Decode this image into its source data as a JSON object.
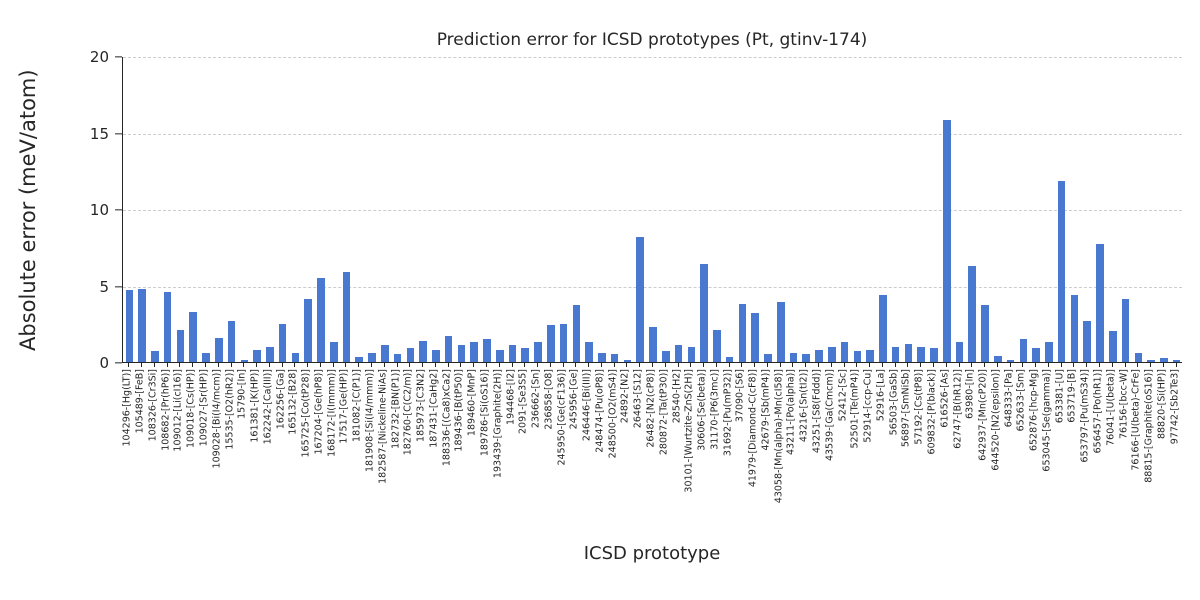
{
  "chart_data": {
    "type": "bar",
    "title": "Prediction error for ICSD prototypes (Pt, gtinv-174)",
    "xlabel": "ICSD prototype",
    "ylabel": "Absolute error (meV/atom)",
    "ylim": [
      0,
      20
    ],
    "yticks": [
      0,
      5,
      10,
      15,
      20
    ],
    "grid": "horizontal-dashed",
    "legend": "none",
    "bar_color": "#4878d0",
    "categories": [
      "104296-[Hg(LT)]",
      "105489-[FeB]",
      "108326-[Cr3Si]",
      "108682-[Pr(hP6)]",
      "109012-[Li(cI16)]",
      "109018-[Cs(HP)]",
      "109027-[Sr(HP)]",
      "109028-[Bi(I4/mcm)]",
      "15535-[O2(hR2)]",
      "15790-[In]",
      "161381-[K(HP)]",
      "162242-[Ca(III)]",
      "162256-[Ga]",
      "165132-[B28]",
      "165725-[Co(tP28)]",
      "167204-[Ge(hP8)]",
      "168172-[I(Immm)]",
      "17517-[Ge(HP)]",
      "181082-[C(P1)]",
      "181908-[Si(I4/mmm)]",
      "182587-[Nickeline-NiAs]",
      "182732-[BN(P1)]",
      "182760-[C(C2/m)]",
      "185973-[C3N2]",
      "187431-[CaHg2]",
      "188336-[(Ca8)xCa2]",
      "189436-[B(tP50)]",
      "189460-[MnP]",
      "189786-[Si(oS16)]",
      "193439-[Graphite(2H)]",
      "194468-[I2]",
      "2091-[Se3S5]",
      "236662-[Sn]",
      "236858-[O8]",
      "245950-[Ge(cF136)]",
      "245956-[Ge]",
      "246446-[Bi(III)]",
      "248474-[Pu(oP8)]",
      "248500-[O2(mS4)]",
      "24892-[N2]",
      "26463-[S12]",
      "26482-[N2(cP8)]",
      "280872-[Ta(tP30)]",
      "28540-[H2]",
      "30101-[Wurtzite-ZnS(2H)]",
      "30606-[Se(beta)]",
      "31170-[P6(3mc)]",
      "31692-[Pu(mP32)]",
      "37090-[S6]",
      "41979-[Diamond-C(cF8)]",
      "42679-[Sb(mP4)]",
      "43058-[Mn(alpha)-Mn(cI58)]",
      "43211-[Po(alpha)]",
      "43216-[Sn(tI2)]",
      "43251-[S8(Fddd)]",
      "43539-[Ga(Cmcm)]",
      "52412-[Sc]",
      "52501-[Te(mP4)]",
      "52914-[ccp-Cu]",
      "52916-[La]",
      "56503-[GaSb]",
      "56897-[SmNiSb]",
      "57192-[Cs(tP8)]",
      "609832-[P(black)]",
      "616526-[As]",
      "62747-[B(hR12)]",
      "63980-[In]",
      "642937-[Mn(cP20)]",
      "644520-[N2(epsilon)]",
      "648333-[Pa]",
      "652633-[Sm]",
      "652876-[hcp-Mg]",
      "653045-[Se(gamma)]",
      "653381-[U]",
      "653719-[B]",
      "653797-[Pu(mS34)]",
      "656457-[Po(hR1)]",
      "76041-[U(beta)]",
      "76156-[bcc-W]",
      "76166-[U(beta)-CrFe]",
      "88815-[Graphite(oS16)]",
      "88820-[Si(HP)]",
      "97742-[Sb2Te3]"
    ],
    "values": [
      4.7,
      4.8,
      0.7,
      4.6,
      2.1,
      3.3,
      0.6,
      1.6,
      2.7,
      0.15,
      0.8,
      1.0,
      2.5,
      0.6,
      4.1,
      5.5,
      1.3,
      5.9,
      0.35,
      0.6,
      1.1,
      0.5,
      0.9,
      1.4,
      0.8,
      1.7,
      1.1,
      1.3,
      1.5,
      0.8,
      1.1,
      0.9,
      1.3,
      2.4,
      2.5,
      3.7,
      1.3,
      0.6,
      0.5,
      0.1,
      8.2,
      2.3,
      0.7,
      1.1,
      1.0,
      6.4,
      2.1,
      0.3,
      3.8,
      3.2,
      0.5,
      3.9,
      0.6,
      0.5,
      0.8,
      1.0,
      1.3,
      0.7,
      0.8,
      4.4,
      1.0,
      1.2,
      1.0,
      0.9,
      15.8,
      1.3,
      6.3,
      3.7,
      0.4,
      0.1,
      1.5,
      0.9,
      1.3,
      11.8,
      4.4,
      2.7,
      7.7,
      2.0,
      4.1,
      0.6,
      0.15,
      0.25,
      0.1
    ]
  }
}
